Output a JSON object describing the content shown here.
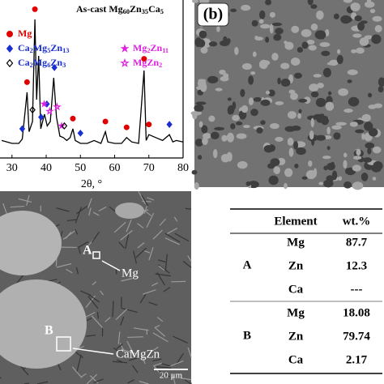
{
  "chart_data": {
    "type": "line",
    "title": "As-cast Mg60Zn35Ca5",
    "xlabel": "2θ, °",
    "xlim": [
      26.5,
      80
    ],
    "xticks": [
      30,
      40,
      50,
      60,
      70,
      80
    ],
    "ylim": [
      0,
      100
    ],
    "color": "#000000",
    "x": [
      27,
      30,
      32,
      33,
      34.4,
      35,
      36,
      36.7,
      37.2,
      37.8,
      38.4,
      39.5,
      40.3,
      41.2,
      42.2,
      43,
      44,
      45,
      46,
      47,
      47.8,
      48.5,
      50,
      52,
      54,
      56,
      57.3,
      58,
      60,
      62,
      63.5,
      65,
      67,
      68.6,
      69.2,
      70,
      72,
      74,
      76,
      77,
      78,
      80
    ],
    "values": [
      12,
      10,
      10,
      13,
      45,
      18,
      25,
      95,
      40,
      70,
      20,
      30,
      22,
      25,
      55,
      28,
      15,
      14,
      12,
      14,
      20,
      12,
      10,
      10,
      12,
      10,
      18,
      11,
      10,
      10,
      14,
      11,
      10,
      60,
      12,
      16,
      14,
      12,
      16,
      11,
      12,
      11
    ],
    "markers": [
      {
        "name": "Mg",
        "color": "#e00000",
        "symbol": "circle",
        "filled": true,
        "x": [
          34.4,
          36.7,
          47.8,
          57.3,
          63.5,
          68.6,
          70
        ],
        "values": [
          52,
          102,
          27,
          25,
          21,
          68,
          23
        ]
      },
      {
        "name": "Ca2Mg5Zn13",
        "color": "#1a2fd0",
        "symbol": "diamond",
        "filled": true,
        "x": [
          33,
          38.5,
          40.2,
          42.4,
          50,
          76
        ],
        "values": [
          20,
          28,
          37,
          62,
          17,
          23
        ]
      },
      {
        "name": "Mg2Zn11",
        "color": "#e020e0",
        "symbol": "star",
        "filled": true,
        "x": [
          39.4,
          44.5
        ],
        "values": [
          37,
          22
        ]
      },
      {
        "name": "Ca2Mg6Zn3",
        "color": "#000000",
        "symbol": "diamond",
        "filled": false,
        "x": [
          36,
          45.3
        ],
        "values": [
          33,
          22
        ]
      },
      {
        "name": "MgZn2",
        "color": "#e020e0",
        "symbol": "star",
        "filled": false,
        "x": [
          41,
          43.2
        ],
        "values": [
          32,
          35
        ]
      }
    ]
  },
  "panel_b": {
    "label": "(b)"
  },
  "micrograph": {
    "labels": {
      "A": "A",
      "B": "B",
      "mg": "Mg",
      "camgzn": "CaMgZn",
      "scale": "20 μm"
    }
  },
  "table": {
    "header": [
      "Element",
      "wt.%"
    ],
    "groups": [
      {
        "label": "A",
        "rows": [
          [
            "Mg",
            87.7
          ],
          [
            "Zn",
            12.3
          ],
          [
            "Ca",
            "---"
          ]
        ]
      },
      {
        "label": "B",
        "rows": [
          [
            "Mg",
            18.08
          ],
          [
            "Zn",
            79.74
          ],
          [
            "Ca",
            2.17
          ]
        ]
      }
    ]
  }
}
